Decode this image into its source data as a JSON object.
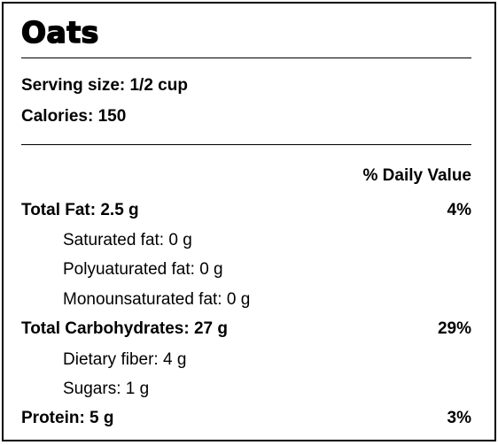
{
  "title": "Oats",
  "serving_size": "Serving size: 1/2 cup",
  "calories": "Calories: 150",
  "daily_value_header": "% Daily Value",
  "nutrients": [
    {
      "label": "Total Fat: 2.5 g",
      "dv": "4%"
    },
    {
      "label": "Saturated fat: 0 g"
    },
    {
      "label": "Polyuaturated fat: 0 g"
    },
    {
      "label": "Monounsaturated fat: 0 g"
    },
    {
      "label": "Total Carbohydrates: 27 g",
      "dv": "29%"
    },
    {
      "label": "Dietary fiber: 4 g"
    },
    {
      "label": "Sugars: 1 g"
    },
    {
      "label": "Protein: 5 g",
      "dv": "3%"
    }
  ]
}
